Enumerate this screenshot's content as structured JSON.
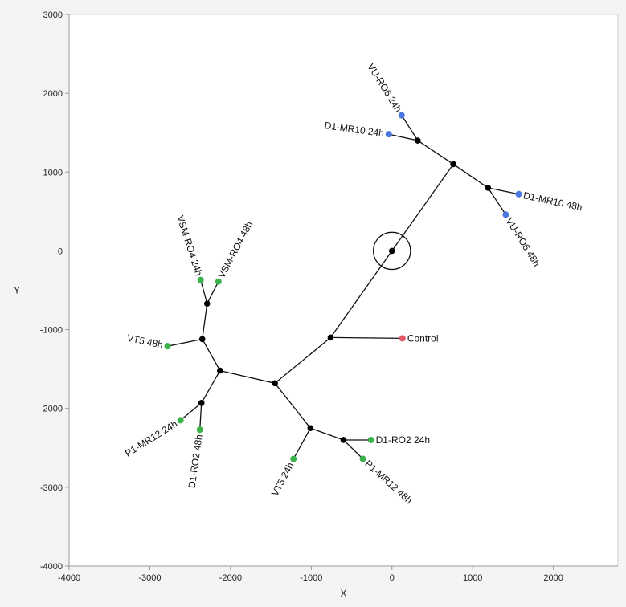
{
  "chart_data": {
    "type": "scatter",
    "xlabel": "X",
    "ylabel": "Y",
    "xlim": [
      -4000,
      2800
    ],
    "ylim": [
      -4000,
      3000
    ],
    "x_ticks": [
      -4000,
      -3000,
      -2000,
      -1000,
      0,
      1000,
      2000
    ],
    "y_ticks": [
      3000,
      2000,
      1000,
      0,
      -1000,
      -2000,
      -3000,
      -4000
    ],
    "x_tick_labels": [
      "-4000",
      "-3000",
      "-2000",
      "-1000",
      "0",
      "1000",
      "2000"
    ],
    "y_tick_labels": [
      "3000",
      "2000",
      "1000",
      "0",
      "-1000",
      "-2000",
      "-3000",
      "-4000"
    ],
    "colors": {
      "blue": "#4a78e0",
      "green": "#3bb34a",
      "red": "#e05a66",
      "internal": "#000000"
    },
    "root_marker": {
      "id": "n0",
      "radius_data": 230
    },
    "nodes": [
      {
        "id": "n0",
        "x": 0,
        "y": 0,
        "kind": "internal"
      },
      {
        "id": "n1",
        "x": 760,
        "y": 1100,
        "kind": "internal"
      },
      {
        "id": "n2",
        "x": 320,
        "y": 1400,
        "kind": "internal"
      },
      {
        "id": "n3",
        "x": 1190,
        "y": 800,
        "kind": "internal"
      },
      {
        "id": "n4",
        "x": -760,
        "y": -1100,
        "kind": "internal"
      },
      {
        "id": "n5",
        "x": -1450,
        "y": -1680,
        "kind": "internal"
      },
      {
        "id": "n6",
        "x": -2130,
        "y": -1520,
        "kind": "internal"
      },
      {
        "id": "n7",
        "x": -2350,
        "y": -1120,
        "kind": "internal"
      },
      {
        "id": "n8",
        "x": -2290,
        "y": -670,
        "kind": "internal"
      },
      {
        "id": "n9",
        "x": -2360,
        "y": -1930,
        "kind": "internal"
      },
      {
        "id": "n10",
        "x": -1010,
        "y": -2250,
        "kind": "internal"
      },
      {
        "id": "n11",
        "x": -600,
        "y": -2400,
        "kind": "internal"
      },
      {
        "id": "vu_ro6_24h",
        "x": 120,
        "y": 1720,
        "kind": "leaf",
        "color": "#4a78e0",
        "label": "VU-RO6 24h",
        "angle": 58,
        "anchor": "end"
      },
      {
        "id": "d1_mr10_24h",
        "x": -40,
        "y": 1480,
        "kind": "leaf",
        "color": "#4a78e0",
        "label": "D1-MR10 24h",
        "angle": 8,
        "anchor": "end"
      },
      {
        "id": "d1_mr10_48h",
        "x": 1570,
        "y": 720,
        "kind": "leaf",
        "color": "#4a78e0",
        "label": "D1-MR10 48h",
        "angle": 12,
        "anchor": "start"
      },
      {
        "id": "vu_ro6_48h",
        "x": 1410,
        "y": 460,
        "kind": "leaf",
        "color": "#4a78e0",
        "label": "VU-RO6 48h",
        "angle": 58,
        "anchor": "start"
      },
      {
        "id": "control",
        "x": 130,
        "y": -1110,
        "kind": "leaf",
        "color": "#e05a66",
        "label": "Control",
        "angle": 0,
        "anchor": "start"
      },
      {
        "id": "vsm_ro4_24h",
        "x": -2370,
        "y": -370,
        "kind": "leaf",
        "color": "#3bb34a",
        "label": "VSM-RO4 24h",
        "angle": 72,
        "anchor": "end"
      },
      {
        "id": "vsm_ro4_48h",
        "x": -2150,
        "y": -390,
        "kind": "leaf",
        "color": "#3bb34a",
        "label": "VSM-RO4 48h",
        "angle": -62,
        "anchor": "start"
      },
      {
        "id": "vt5_48h",
        "x": -2780,
        "y": -1210,
        "kind": "leaf",
        "color": "#3bb34a",
        "label": "VT5 48h",
        "angle": 12,
        "anchor": "end"
      },
      {
        "id": "p1_mr12_24h",
        "x": -2620,
        "y": -2150,
        "kind": "leaf",
        "color": "#3bb34a",
        "label": "P1-MR12 24h",
        "angle": -32,
        "anchor": "end"
      },
      {
        "id": "d1_ro2_48h",
        "x": -2380,
        "y": -2270,
        "kind": "leaf",
        "color": "#3bb34a",
        "label": "D1-RO2 48h",
        "angle": -82,
        "anchor": "end"
      },
      {
        "id": "vt5_24h",
        "x": -1220,
        "y": -2640,
        "kind": "leaf",
        "color": "#3bb34a",
        "label": "VT5 24h",
        "angle": -62,
        "anchor": "end"
      },
      {
        "id": "d1_ro2_24h",
        "x": -260,
        "y": -2400,
        "kind": "leaf",
        "color": "#3bb34a",
        "label": "D1-RO2 24h",
        "angle": 0,
        "anchor": "start"
      },
      {
        "id": "p1_mr12_48h",
        "x": -360,
        "y": -2640,
        "kind": "leaf",
        "color": "#3bb34a",
        "label": "P1-MR12 48h",
        "angle": 42,
        "anchor": "start"
      }
    ],
    "edges": [
      [
        "n0",
        "n1"
      ],
      [
        "n1",
        "n2"
      ],
      [
        "n2",
        "vu_ro6_24h"
      ],
      [
        "n2",
        "d1_mr10_24h"
      ],
      [
        "n1",
        "n3"
      ],
      [
        "n3",
        "d1_mr10_48h"
      ],
      [
        "n3",
        "vu_ro6_48h"
      ],
      [
        "n0",
        "n4"
      ],
      [
        "n4",
        "control"
      ],
      [
        "n4",
        "n5"
      ],
      [
        "n5",
        "n6"
      ],
      [
        "n6",
        "n7"
      ],
      [
        "n7",
        "n8"
      ],
      [
        "n8",
        "vsm_ro4_24h"
      ],
      [
        "n8",
        "vsm_ro4_48h"
      ],
      [
        "n7",
        "vt5_48h"
      ],
      [
        "n6",
        "n9"
      ],
      [
        "n9",
        "p1_mr12_24h"
      ],
      [
        "n9",
        "d1_ro2_48h"
      ],
      [
        "n5",
        "n10"
      ],
      [
        "n10",
        "vt5_24h"
      ],
      [
        "n10",
        "n11"
      ],
      [
        "n11",
        "d1_ro2_24h"
      ],
      [
        "n11",
        "p1_mr12_48h"
      ]
    ]
  }
}
